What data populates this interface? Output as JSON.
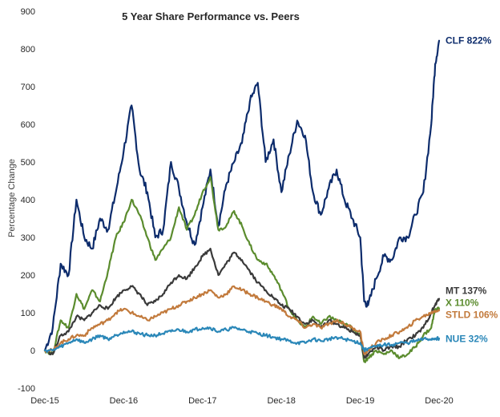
{
  "chart_data": {
    "type": "line",
    "title": "5 Year Share Performance vs. Peers",
    "ylabel": "Percentage Change",
    "xlabel": "",
    "ylim": [
      -100,
      900
    ],
    "yticks": [
      "-100",
      "0",
      "100",
      "200",
      "300",
      "400",
      "500",
      "600",
      "700",
      "800",
      "900"
    ],
    "xticks": [
      "Dec-15",
      "Dec-16",
      "Dec-17",
      "Dec-18",
      "Dec-19",
      "Dec-20"
    ],
    "x_years": [
      0,
      5
    ],
    "grid": false,
    "legend": "end-of-line labels",
    "series": [
      {
        "name": "CLF 822%",
        "color": "#0d2c6c",
        "x": [
          0,
          0.1,
          0.2,
          0.3,
          0.4,
          0.5,
          0.6,
          0.7,
          0.8,
          0.9,
          1.0,
          1.1,
          1.2,
          1.3,
          1.4,
          1.5,
          1.6,
          1.7,
          1.8,
          1.9,
          2.0,
          2.1,
          2.2,
          2.3,
          2.4,
          2.5,
          2.6,
          2.7,
          2.8,
          2.9,
          3.0,
          3.1,
          3.2,
          3.3,
          3.4,
          3.5,
          3.6,
          3.7,
          3.8,
          3.9,
          4.0,
          4.05,
          4.1,
          4.2,
          4.3,
          4.4,
          4.5,
          4.6,
          4.7,
          4.8,
          4.9,
          4.95,
          5.0
        ],
        "y": [
          0,
          60,
          230,
          200,
          400,
          300,
          270,
          350,
          320,
          420,
          530,
          650,
          480,
          420,
          300,
          320,
          500,
          430,
          340,
          280,
          380,
          480,
          330,
          440,
          500,
          550,
          660,
          710,
          500,
          560,
          420,
          520,
          610,
          570,
          420,
          360,
          430,
          480,
          400,
          350,
          300,
          130,
          120,
          190,
          250,
          240,
          300,
          300,
          360,
          420,
          600,
          760,
          822
        ]
      },
      {
        "name": "X 110%",
        "color": "#5b8c2e",
        "x": [
          0,
          0.1,
          0.2,
          0.3,
          0.4,
          0.5,
          0.6,
          0.7,
          0.8,
          0.9,
          1.0,
          1.1,
          1.2,
          1.3,
          1.4,
          1.5,
          1.6,
          1.7,
          1.8,
          1.9,
          2.0,
          2.1,
          2.2,
          2.3,
          2.4,
          2.5,
          2.6,
          2.7,
          2.8,
          2.9,
          3.0,
          3.1,
          3.2,
          3.3,
          3.4,
          3.5,
          3.6,
          3.7,
          3.8,
          3.9,
          4.0,
          4.05,
          4.1,
          4.2,
          4.3,
          4.4,
          4.5,
          4.6,
          4.7,
          4.8,
          4.9,
          4.95,
          5.0
        ],
        "y": [
          0,
          -10,
          80,
          60,
          150,
          110,
          160,
          130,
          210,
          300,
          340,
          400,
          360,
          300,
          240,
          270,
          300,
          380,
          320,
          360,
          420,
          460,
          320,
          330,
          370,
          330,
          280,
          240,
          230,
          200,
          160,
          110,
          80,
          60,
          90,
          70,
          90,
          80,
          70,
          60,
          40,
          -30,
          -20,
          0,
          -10,
          0,
          -20,
          -10,
          10,
          40,
          60,
          110,
          110
        ]
      },
      {
        "name": "MT 137%",
        "color": "#3a3a3a",
        "x": [
          0,
          0.1,
          0.2,
          0.3,
          0.4,
          0.5,
          0.6,
          0.7,
          0.8,
          0.9,
          1.0,
          1.1,
          1.2,
          1.3,
          1.4,
          1.5,
          1.6,
          1.7,
          1.8,
          1.9,
          2.0,
          2.1,
          2.2,
          2.3,
          2.4,
          2.5,
          2.6,
          2.7,
          2.8,
          2.9,
          3.0,
          3.1,
          3.2,
          3.3,
          3.4,
          3.5,
          3.6,
          3.7,
          3.8,
          3.9,
          4.0,
          4.05,
          4.1,
          4.2,
          4.3,
          4.4,
          4.5,
          4.6,
          4.7,
          4.8,
          4.9,
          4.95,
          5.0
        ],
        "y": [
          0,
          -10,
          40,
          50,
          90,
          80,
          100,
          120,
          110,
          140,
          160,
          170,
          150,
          120,
          130,
          150,
          180,
          200,
          190,
          220,
          250,
          270,
          200,
          230,
          260,
          240,
          210,
          180,
          160,
          140,
          120,
          110,
          90,
          70,
          80,
          60,
          80,
          70,
          60,
          50,
          40,
          -20,
          -10,
          10,
          0,
          10,
          10,
          30,
          40,
          60,
          100,
          120,
          137
        ]
      },
      {
        "name": "STLD 106%",
        "color": "#c27a3c",
        "x": [
          0,
          0.1,
          0.2,
          0.3,
          0.4,
          0.5,
          0.6,
          0.7,
          0.8,
          0.9,
          1.0,
          1.1,
          1.2,
          1.3,
          1.4,
          1.5,
          1.6,
          1.7,
          1.8,
          1.9,
          2.0,
          2.1,
          2.2,
          2.3,
          2.4,
          2.5,
          2.6,
          2.7,
          2.8,
          2.9,
          3.0,
          3.1,
          3.2,
          3.3,
          3.4,
          3.5,
          3.6,
          3.7,
          3.8,
          3.9,
          4.0,
          4.05,
          4.1,
          4.2,
          4.3,
          4.4,
          4.5,
          4.6,
          4.7,
          4.8,
          4.9,
          4.95,
          5.0
        ],
        "y": [
          0,
          0,
          20,
          30,
          40,
          40,
          60,
          70,
          80,
          100,
          110,
          100,
          90,
          80,
          90,
          100,
          110,
          120,
          130,
          140,
          150,
          160,
          140,
          150,
          170,
          160,
          150,
          140,
          130,
          120,
          110,
          90,
          80,
          60,
          70,
          60,
          70,
          80,
          70,
          60,
          50,
          -10,
          0,
          20,
          30,
          40,
          50,
          60,
          80,
          90,
          100,
          105,
          106
        ]
      },
      {
        "name": "NUE 32%",
        "color": "#2a87b8",
        "x": [
          0,
          0.1,
          0.2,
          0.3,
          0.4,
          0.5,
          0.6,
          0.7,
          0.8,
          0.9,
          1.0,
          1.1,
          1.2,
          1.3,
          1.4,
          1.5,
          1.6,
          1.7,
          1.8,
          1.9,
          2.0,
          2.1,
          2.2,
          2.3,
          2.4,
          2.5,
          2.6,
          2.7,
          2.8,
          2.9,
          3.0,
          3.1,
          3.2,
          3.3,
          3.4,
          3.5,
          3.6,
          3.7,
          3.8,
          3.9,
          4.0,
          4.05,
          4.1,
          4.2,
          4.3,
          4.4,
          4.5,
          4.6,
          4.7,
          4.8,
          4.9,
          4.95,
          5.0
        ],
        "y": [
          0,
          0,
          10,
          20,
          30,
          20,
          30,
          40,
          30,
          40,
          50,
          50,
          45,
          40,
          40,
          45,
          50,
          55,
          50,
          55,
          60,
          60,
          50,
          55,
          60,
          55,
          50,
          45,
          40,
          35,
          30,
          25,
          20,
          20,
          30,
          25,
          30,
          35,
          30,
          25,
          20,
          0,
          5,
          10,
          15,
          15,
          20,
          20,
          25,
          30,
          30,
          32,
          32
        ]
      }
    ]
  }
}
